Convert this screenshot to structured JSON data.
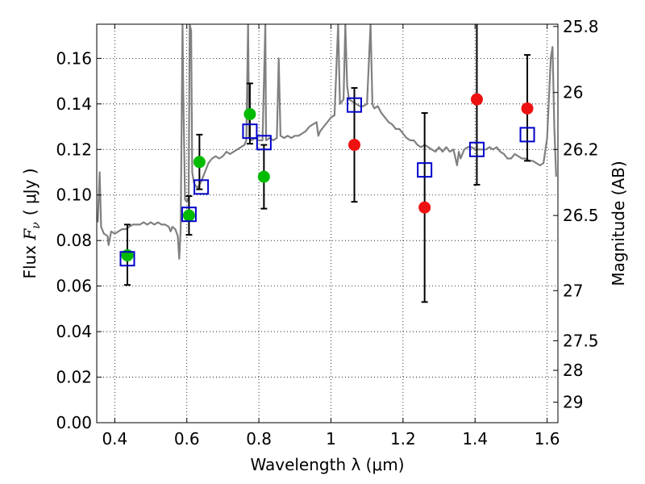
{
  "chart_data": {
    "type": "scatter",
    "xlabel": "Wavelength  λ (μm)",
    "ylabel_prefix": "Flux  ",
    "ylabel_symbol": "F",
    "ylabel_subscript": "ν",
    "ylabel_unit": "( μJy )",
    "ylabel_right": "Magnitude (AB)",
    "xlim": [
      0.35,
      1.63
    ],
    "ylim": [
      0.0,
      0.175
    ],
    "grid": true,
    "x_ticks": [
      0.4,
      0.6,
      0.8,
      1.0,
      1.2,
      1.4,
      1.6
    ],
    "x_tick_labels": [
      "0.4",
      "0.6",
      "0.8",
      "1",
      "1.2",
      "1.4",
      "1.6"
    ],
    "y_ticks": [
      0.0,
      0.02,
      0.04,
      0.06,
      0.08,
      0.1,
      0.12,
      0.14,
      0.16
    ],
    "y_tick_labels": [
      "0.00",
      "0.02",
      "0.04",
      "0.06",
      "0.08",
      "0.10",
      "0.12",
      "0.14",
      "0.16"
    ],
    "right_ticks": [
      {
        "label": "25.8",
        "flux": 0.174
      },
      {
        "label": "26",
        "flux": 0.145
      },
      {
        "label": "26.2",
        "flux": 0.12
      },
      {
        "label": "26.5",
        "flux": 0.091
      },
      {
        "label": "27",
        "flux": 0.058
      },
      {
        "label": "27.5",
        "flux": 0.036
      },
      {
        "label": "28",
        "flux": 0.023
      },
      {
        "label": "29",
        "flux": 0.009
      }
    ],
    "series": [
      {
        "marker": "circle",
        "color": "#00bb00",
        "points": [
          {
            "x": 0.435,
            "y": 0.0735
          },
          {
            "x": 0.606,
            "y": 0.091
          },
          {
            "x": 0.635,
            "y": 0.1145
          },
          {
            "x": 0.775,
            "y": 0.1355
          },
          {
            "x": 0.814,
            "y": 0.108
          }
        ]
      },
      {
        "marker": "circle",
        "color": "#ee1111",
        "points": [
          {
            "x": 1.065,
            "y": 0.122
          },
          {
            "x": 1.26,
            "y": 0.0945
          },
          {
            "x": 1.405,
            "y": 0.142
          },
          {
            "x": 1.545,
            "y": 0.138
          }
        ]
      },
      {
        "marker": "square",
        "color": "#0000cc",
        "points": [
          {
            "x": 0.435,
            "y": 0.072
          },
          {
            "x": 0.606,
            "y": 0.0915
          },
          {
            "x": 0.64,
            "y": 0.1035
          },
          {
            "x": 0.775,
            "y": 0.128
          },
          {
            "x": 0.814,
            "y": 0.123
          },
          {
            "x": 1.065,
            "y": 0.1395
          },
          {
            "x": 1.26,
            "y": 0.111
          },
          {
            "x": 1.405,
            "y": 0.12
          },
          {
            "x": 1.545,
            "y": 0.1265
          }
        ]
      }
    ],
    "error_bars": [
      {
        "x": 0.435,
        "low": 0.0605,
        "high": 0.087
      },
      {
        "x": 0.606,
        "low": 0.0825,
        "high": 0.0995
      },
      {
        "x": 0.635,
        "low": 0.1025,
        "high": 0.1265
      },
      {
        "x": 0.775,
        "low": 0.1225,
        "high": 0.149
      },
      {
        "x": 0.814,
        "low": 0.094,
        "high": 0.122
      },
      {
        "x": 1.065,
        "low": 0.097,
        "high": 0.147
      },
      {
        "x": 1.26,
        "low": 0.053,
        "high": 0.136
      },
      {
        "x": 1.405,
        "low": 0.1045,
        "high": 0.176
      },
      {
        "x": 1.545,
        "low": 0.115,
        "high": 0.1615
      }
    ],
    "spectrum": {
      "color": "#808080",
      "points": [
        [
          0.353,
          0.088
        ],
        [
          0.358,
          0.11
        ],
        [
          0.362,
          0.086
        ],
        [
          0.37,
          0.083
        ],
        [
          0.38,
          0.082
        ],
        [
          0.383,
          0.078
        ],
        [
          0.39,
          0.084
        ],
        [
          0.4,
          0.083
        ],
        [
          0.41,
          0.084
        ],
        [
          0.42,
          0.085
        ],
        [
          0.43,
          0.085
        ],
        [
          0.44,
          0.086
        ],
        [
          0.45,
          0.087
        ],
        [
          0.46,
          0.087
        ],
        [
          0.47,
          0.087
        ],
        [
          0.48,
          0.088
        ],
        [
          0.49,
          0.087
        ],
        [
          0.5,
          0.088
        ],
        [
          0.51,
          0.087
        ],
        [
          0.52,
          0.088
        ],
        [
          0.53,
          0.087
        ],
        [
          0.54,
          0.087
        ],
        [
          0.55,
          0.086
        ],
        [
          0.555,
          0.084
        ],
        [
          0.56,
          0.086
        ],
        [
          0.568,
          0.085
        ],
        [
          0.575,
          0.082
        ],
        [
          0.579,
          0.072
        ],
        [
          0.583,
          0.085
        ],
        [
          0.588,
          0.175
        ],
        [
          0.59,
          0.145
        ],
        [
          0.595,
          0.098
        ],
        [
          0.6,
          0.097
        ],
        [
          0.605,
          0.099
        ],
        [
          0.608,
          0.175
        ],
        [
          0.612,
          0.172
        ],
        [
          0.615,
          0.11
        ],
        [
          0.62,
          0.105
        ],
        [
          0.63,
          0.103
        ],
        [
          0.64,
          0.106
        ],
        [
          0.65,
          0.11
        ],
        [
          0.66,
          0.114
        ],
        [
          0.67,
          0.116
        ],
        [
          0.68,
          0.117
        ],
        [
          0.69,
          0.116
        ],
        [
          0.7,
          0.117
        ],
        [
          0.71,
          0.119
        ],
        [
          0.72,
          0.118
        ],
        [
          0.73,
          0.119
        ],
        [
          0.74,
          0.12
        ],
        [
          0.75,
          0.121
        ],
        [
          0.76,
          0.122
        ],
        [
          0.765,
          0.124
        ],
        [
          0.77,
          0.175
        ],
        [
          0.773,
          0.125
        ],
        [
          0.78,
          0.124
        ],
        [
          0.79,
          0.125
        ],
        [
          0.8,
          0.124
        ],
        [
          0.81,
          0.124
        ],
        [
          0.818,
          0.175
        ],
        [
          0.82,
          0.124
        ],
        [
          0.83,
          0.125
        ],
        [
          0.84,
          0.124
        ],
        [
          0.85,
          0.125
        ],
        [
          0.855,
          0.16
        ],
        [
          0.86,
          0.126
        ],
        [
          0.87,
          0.125
        ],
        [
          0.88,
          0.126
        ],
        [
          0.89,
          0.125
        ],
        [
          0.9,
          0.126
        ],
        [
          0.91,
          0.126
        ],
        [
          0.92,
          0.127
        ],
        [
          0.93,
          0.128
        ],
        [
          0.94,
          0.13
        ],
        [
          0.95,
          0.131
        ],
        [
          0.96,
          0.132
        ],
        [
          0.965,
          0.126
        ],
        [
          0.97,
          0.128
        ],
        [
          0.98,
          0.13
        ],
        [
          0.99,
          0.132
        ],
        [
          1.0,
          0.134
        ],
        [
          1.01,
          0.135
        ],
        [
          1.02,
          0.175
        ],
        [
          1.025,
          0.14
        ],
        [
          1.035,
          0.142
        ],
        [
          1.04,
          0.175
        ],
        [
          1.045,
          0.148
        ],
        [
          1.05,
          0.142
        ],
        [
          1.06,
          0.141
        ],
        [
          1.07,
          0.14
        ],
        [
          1.08,
          0.139
        ],
        [
          1.09,
          0.139
        ],
        [
          1.1,
          0.14
        ],
        [
          1.11,
          0.175
        ],
        [
          1.115,
          0.14
        ],
        [
          1.12,
          0.138
        ],
        [
          1.13,
          0.139
        ],
        [
          1.14,
          0.136
        ],
        [
          1.15,
          0.134
        ],
        [
          1.16,
          0.132
        ],
        [
          1.17,
          0.131
        ],
        [
          1.18,
          0.129
        ],
        [
          1.19,
          0.129
        ],
        [
          1.2,
          0.127
        ],
        [
          1.21,
          0.125
        ],
        [
          1.22,
          0.124
        ],
        [
          1.23,
          0.124
        ],
        [
          1.24,
          0.122
        ],
        [
          1.25,
          0.121
        ],
        [
          1.26,
          0.122
        ],
        [
          1.27,
          0.121
        ],
        [
          1.28,
          0.12
        ],
        [
          1.29,
          0.119
        ],
        [
          1.3,
          0.121
        ],
        [
          1.31,
          0.119
        ],
        [
          1.32,
          0.121
        ],
        [
          1.33,
          0.119
        ],
        [
          1.34,
          0.12
        ],
        [
          1.35,
          0.113
        ],
        [
          1.355,
          0.119
        ],
        [
          1.36,
          0.116
        ],
        [
          1.37,
          0.12
        ],
        [
          1.38,
          0.121
        ],
        [
          1.39,
          0.121
        ],
        [
          1.4,
          0.12
        ],
        [
          1.41,
          0.12
        ],
        [
          1.42,
          0.12
        ],
        [
          1.43,
          0.12
        ],
        [
          1.44,
          0.121
        ],
        [
          1.45,
          0.12
        ],
        [
          1.46,
          0.121
        ],
        [
          1.47,
          0.119
        ],
        [
          1.48,
          0.118
        ],
        [
          1.49,
          0.116
        ],
        [
          1.5,
          0.116
        ],
        [
          1.51,
          0.118
        ],
        [
          1.52,
          0.117
        ],
        [
          1.53,
          0.116
        ],
        [
          1.54,
          0.116
        ],
        [
          1.55,
          0.115
        ],
        [
          1.56,
          0.115
        ],
        [
          1.57,
          0.114
        ],
        [
          1.58,
          0.113
        ],
        [
          1.59,
          0.114
        ],
        [
          1.6,
          0.125
        ],
        [
          1.61,
          0.16
        ],
        [
          1.615,
          0.165
        ],
        [
          1.62,
          0.13
        ],
        [
          1.625,
          0.108
        ]
      ]
    }
  }
}
